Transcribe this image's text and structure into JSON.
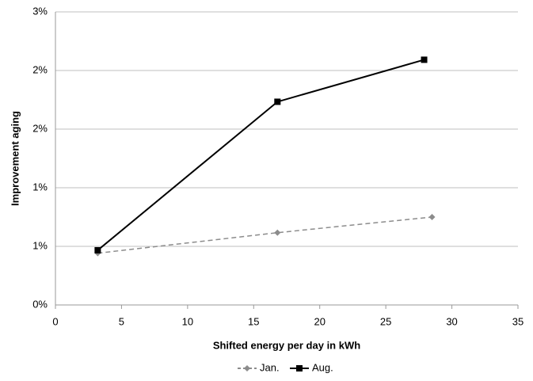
{
  "chart_data": {
    "type": "line",
    "x_label": "Shifted energy per day in kWh",
    "y_label": "Improvement aging",
    "xlim": [
      0,
      35
    ],
    "xticks": [
      0,
      5,
      10,
      15,
      20,
      25,
      30,
      35
    ],
    "ylim": [
      0,
      3
    ],
    "yticks": [
      {
        "value": 0,
        "label": "0%"
      },
      {
        "value": 0.6,
        "label": "1%"
      },
      {
        "value": 1.2,
        "label": "1%"
      },
      {
        "value": 1.8,
        "label": "2%"
      },
      {
        "value": 2.4,
        "label": "2%"
      },
      {
        "value": 3.0,
        "label": "3%"
      }
    ],
    "grid": true,
    "legend": "bottom",
    "series": [
      {
        "name": "Jan.",
        "color": "#8c8c8c",
        "dashed": true,
        "marker": "diamond",
        "x": [
          3.2,
          16.8,
          28.5
        ],
        "values": [
          0.53,
          0.74,
          0.9
        ]
      },
      {
        "name": "Aug.",
        "color": "#000000",
        "dashed": false,
        "marker": "square",
        "x": [
          3.2,
          16.8,
          27.9
        ],
        "values": [
          0.56,
          2.08,
          2.51
        ]
      }
    ]
  }
}
